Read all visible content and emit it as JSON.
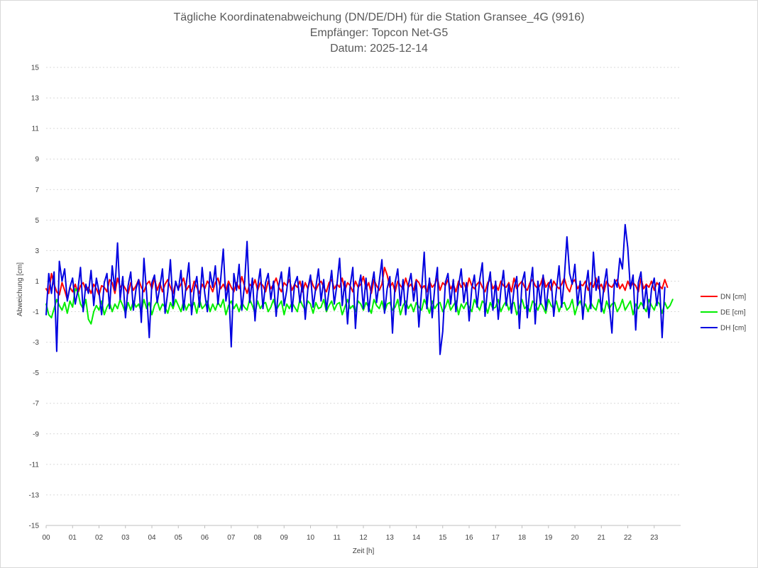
{
  "chart_data": {
    "type": "line",
    "title": [
      "Tägliche Koordinatenabweichung (DN/DE/DH) für die Station Gransee_4G (9916)",
      "Empfänger: Topcon Net-G5",
      "Datum: 2025-12-14"
    ],
    "xlabel": "Zeit [h]",
    "ylabel": "Abweichung [cm]",
    "xlim": [
      0,
      24
    ],
    "ylim": [
      -15,
      15
    ],
    "grid": true,
    "legend_position": "right",
    "x_ticks": [
      "00",
      "01",
      "02",
      "03",
      "04",
      "05",
      "06",
      "07",
      "08",
      "09",
      "10",
      "11",
      "12",
      "13",
      "14",
      "15",
      "16",
      "17",
      "18",
      "19",
      "20",
      "21",
      "22",
      "23"
    ],
    "y_ticks": [
      15,
      13,
      11,
      9,
      7,
      5,
      3,
      1,
      -1,
      -3,
      -5,
      -7,
      -9,
      -11,
      -13,
      -15
    ],
    "x_step_hours": 0.1,
    "series": [
      {
        "name": "DN [cm]",
        "color": "#ff0000",
        "values": [
          0.5,
          0.2,
          1.5,
          0.8,
          0.3,
          0.1,
          0.9,
          0.4,
          -0.2,
          0.6,
          0.3,
          0.8,
          0.2,
          0.7,
          0.9,
          0.4,
          0.6,
          0.2,
          0.8,
          0.5,
          0.1,
          0.7,
          0.6,
          0.3,
          1.1,
          0.9,
          0.2,
          1.2,
          0.6,
          0.8,
          0.5,
          0.2,
          0.9,
          0.4,
          0.7,
          1.1,
          0.6,
          0.3,
          0.8,
          1.0,
          0.5,
          1.2,
          0.4,
          0.9,
          0.3,
          0.8,
          1.1,
          0.6,
          0.2,
          0.9,
          0.5,
          0.8,
          1.2,
          0.4,
          0.7,
          0.3,
          1.0,
          0.6,
          0.2,
          0.8,
          0.5,
          1.0,
          0.7,
          0.3,
          0.9,
          1.2,
          0.5,
          0.8,
          0.4,
          1.0,
          0.6,
          0.3,
          0.9,
          0.5,
          1.3,
          0.7,
          0.2,
          0.8,
          0.6,
          1.1,
          0.4,
          0.9,
          0.7,
          0.3,
          1.0,
          0.5,
          0.8,
          1.2,
          0.6,
          0.3,
          0.9,
          0.7,
          1.1,
          0.4,
          0.8,
          0.6,
          1.0,
          0.3,
          0.9,
          0.5,
          1.2,
          0.7,
          0.4,
          0.8,
          1.0,
          0.6,
          0.3,
          0.9,
          1.1,
          0.5,
          0.8,
          0.6,
          1.2,
          0.4,
          0.9,
          0.7,
          0.3,
          1.0,
          0.6,
          0.8,
          1.3,
          0.5,
          0.9,
          0.2,
          1.1,
          0.7,
          0.4,
          0.8,
          1.9,
          1.4,
          0.6,
          0.9,
          0.3,
          1.0,
          0.7,
          0.5,
          1.2,
          0.6,
          0.8,
          0.4,
          1.1,
          0.9,
          0.5,
          0.7,
          0.3,
          1.0,
          0.6,
          0.8,
          1.2,
          0.4,
          0.9,
          0.7,
          1.1,
          0.5,
          0.8,
          0.3,
          1.0,
          0.6,
          0.9,
          0.4,
          1.2,
          0.7,
          0.5,
          0.8,
          1.0,
          0.6,
          0.3,
          0.9,
          1.1,
          0.5,
          0.8,
          0.4,
          1.0,
          0.7,
          0.6,
          0.9,
          0.3,
          1.2,
          0.5,
          0.8,
          1.0,
          0.6,
          0.4,
          0.9,
          1.1,
          0.7,
          0.5,
          0.8,
          1.3,
          0.6,
          0.9,
          0.4,
          1.0,
          0.7,
          0.5,
          0.8,
          1.2,
          0.6,
          0.3,
          0.9,
          1.1,
          0.5,
          0.8,
          0.7,
          1.0,
          0.4,
          0.9,
          0.6,
          1.2,
          0.5,
          0.8,
          0.3,
          1.0,
          0.7,
          0.6,
          0.9,
          1.1,
          0.5,
          0.8,
          0.4,
          1.0,
          0.6,
          0.9,
          0.7,
          0.3,
          1.2,
          0.5,
          0.8,
          0.6,
          1.0,
          0.4,
          0.9,
          0.7,
          0.5,
          1.1,
          0.6
        ],
        "visible_extent_note": "curve mostly between -0.5 and 2"
      },
      {
        "name": "DE [cm]",
        "color": "#00ee00",
        "values": [
          -0.5,
          -1.2,
          -1.4,
          -0.8,
          -0.2,
          -0.6,
          -0.9,
          -0.4,
          -1.1,
          -0.3,
          -0.7,
          0.5,
          0.3,
          -0.5,
          -0.8,
          -0.2,
          -1.5,
          -1.8,
          -1.0,
          -0.6,
          -0.9,
          -0.3,
          -1.2,
          -0.7,
          -0.4,
          -1.0,
          -0.5,
          -0.8,
          -0.2,
          -0.6,
          -1.1,
          -0.4,
          -0.9,
          -0.3,
          -0.7,
          -0.5,
          -1.0,
          -0.2,
          -0.8,
          -0.4,
          -1.2,
          -0.6,
          -0.3,
          -0.9,
          -0.5,
          -0.7,
          -1.1,
          -0.4,
          -0.8,
          -0.2,
          -0.6,
          -1.0,
          -0.3,
          -0.9,
          -0.5,
          -0.7,
          -0.4,
          -1.1,
          -0.2,
          -0.8,
          -0.6,
          -0.3,
          -1.0,
          -0.5,
          -0.9,
          -0.4,
          -0.7,
          -0.2,
          -1.2,
          -0.6,
          -0.3,
          -0.8,
          -0.5,
          -1.0,
          -0.4,
          -0.7,
          -0.9,
          -0.2,
          -0.6,
          -1.1,
          -0.3,
          -0.8,
          -0.5,
          -0.4,
          -1.0,
          -0.7,
          -0.2,
          -0.9,
          -0.6,
          -0.3,
          -1.2,
          -0.5,
          -0.8,
          -0.4,
          -0.7,
          -1.0,
          -0.2,
          -0.6,
          -0.9,
          -0.3,
          -0.5,
          -1.1,
          -0.4,
          -0.8,
          -0.7,
          -0.2,
          -1.0,
          -0.6,
          -0.3,
          -0.9,
          -0.5,
          -0.4,
          -1.2,
          -0.7,
          -0.2,
          -0.8,
          -0.6,
          -1.0,
          -0.3,
          -0.5,
          -0.9,
          -0.4,
          -0.7,
          -1.1,
          -0.2,
          -0.6,
          -0.8,
          -0.3,
          -1.0,
          -0.5,
          -0.4,
          -0.9,
          -0.7,
          -0.2,
          -1.2,
          -0.6,
          -0.3,
          -0.8,
          -0.5,
          -1.0,
          -0.4,
          -0.7,
          -0.9,
          -0.2,
          -0.6,
          -1.1,
          -0.3,
          -0.8,
          -0.5,
          -0.4,
          -1.0,
          -0.7,
          -0.2,
          -0.9,
          -0.6,
          -0.3,
          -1.2,
          -0.5,
          -0.8,
          -0.4,
          -0.7,
          -1.0,
          -0.2,
          -0.6,
          -0.9,
          -0.3,
          -0.5,
          -1.1,
          -0.4,
          -0.8,
          -0.7,
          -0.2,
          -1.0,
          -0.6,
          -0.3,
          -0.9,
          -0.5,
          -0.4,
          -1.2,
          -0.7,
          -0.2,
          -0.8,
          -0.6,
          -1.0,
          -0.3,
          -0.5,
          -0.9,
          -0.4,
          -0.7,
          -1.1,
          -0.2,
          -0.6,
          -0.8,
          -0.3,
          -1.0,
          -0.5,
          -0.4,
          -0.9,
          -0.7,
          -0.2,
          -1.2,
          -0.6,
          -0.3,
          -0.8,
          -0.5,
          -1.0,
          -0.4,
          -0.7,
          -0.9,
          -0.2,
          -0.6,
          -1.1,
          -0.3,
          -0.8,
          -0.5,
          -0.4,
          -1.0,
          -0.7,
          -0.2,
          -0.9,
          -0.6,
          -0.3,
          -1.2,
          -0.5,
          -0.8,
          -0.4,
          -0.7,
          -1.0,
          -0.2,
          -0.6,
          -0.9,
          -0.3,
          -0.5,
          -1.1,
          -0.4,
          -0.8,
          -0.6,
          -0.2
        ]
      },
      {
        "name": "DH [cm]",
        "color": "#0000e0",
        "values": [
          -1.2,
          1.5,
          0.2,
          1.6,
          -3.6,
          2.3,
          1.0,
          1.8,
          -0.3,
          0.6,
          1.2,
          -0.5,
          0.4,
          1.9,
          -1.0,
          0.8,
          0.2,
          1.7,
          -0.6,
          1.2,
          0.3,
          -1.2,
          0.9,
          1.5,
          -0.8,
          2.0,
          0.4,
          3.5,
          -0.2,
          1.3,
          -1.4,
          0.7,
          1.6,
          -0.9,
          0.5,
          1.1,
          -1.7,
          2.5,
          0.2,
          -2.7,
          0.9,
          1.4,
          -0.4,
          0.6,
          1.8,
          -1.1,
          0.3,
          2.4,
          -0.6,
          1.0,
          0.4,
          1.7,
          -0.9,
          0.8,
          2.2,
          -1.2,
          0.5,
          1.3,
          -0.7,
          1.9,
          0.2,
          -1.0,
          1.6,
          0.6,
          2.0,
          -0.5,
          1.1,
          3.1,
          -0.3,
          0.8,
          -3.3,
          1.5,
          0.4,
          2.1,
          -0.9,
          0.7,
          3.6,
          -0.4,
          1.2,
          -1.6,
          0.6,
          1.8,
          -0.8,
          0.9,
          1.5,
          -0.2,
          1.0,
          -1.3,
          0.7,
          1.6,
          -0.6,
          0.4,
          1.9,
          -1.0,
          0.8,
          1.3,
          -0.4,
          1.0,
          -1.5,
          0.5,
          1.4,
          -0.7,
          0.6,
          1.8,
          -0.3,
          1.1,
          -0.9,
          0.4,
          1.7,
          -0.5,
          0.8,
          2.5,
          -0.6,
          1.0,
          -1.8,
          0.7,
          1.9,
          -2.1,
          0.5,
          1.4,
          -0.8,
          1.2,
          -1.0,
          0.6,
          1.6,
          -0.4,
          1.0,
          2.4,
          -1.1,
          0.5,
          1.3,
          -2.4,
          0.9,
          1.8,
          -0.6,
          1.1,
          -1.2,
          0.7,
          1.5,
          -0.3,
          1.0,
          -2.0,
          0.4,
          2.9,
          -0.8,
          1.2,
          -1.4,
          0.6,
          1.9,
          -3.8,
          -2.3,
          0.9,
          1.5,
          -0.5,
          1.1,
          -1.0,
          0.7,
          1.8,
          -0.4,
          0.9,
          -1.6,
          0.5,
          1.4,
          -0.7,
          1.1,
          2.2,
          -1.3,
          0.6,
          1.6,
          -0.9,
          1.0,
          -1.5,
          0.4,
          1.7,
          -0.6,
          0.8,
          -1.1,
          0.5,
          1.3,
          -2.1,
          0.9,
          1.6,
          -1.4,
          0.6,
          1.9,
          -1.8,
          1.0,
          -0.5,
          1.4,
          -0.9,
          0.7,
          1.1,
          -1.3,
          0.4,
          2.0,
          -0.7,
          1.2,
          3.9,
          1.5,
          0.8,
          2.1,
          -0.6,
          1.0,
          -1.5,
          0.5,
          1.7,
          -0.8,
          2.9,
          0.4,
          1.3,
          -1.0,
          0.7,
          1.8,
          -0.5,
          -2.4,
          1.1,
          0.6,
          2.5,
          1.8,
          4.7,
          3.2,
          0.5,
          1.4,
          -2.2,
          0.9,
          1.6,
          -0.8,
          0.7,
          -1.4,
          0.5,
          1.2,
          -0.6,
          0.9,
          -2.7,
          0.6
        ]
      }
    ]
  },
  "legend": {
    "items": [
      {
        "label": "DN [cm]",
        "color": "#ff0000"
      },
      {
        "label": "DE [cm]",
        "color": "#00ee00"
      },
      {
        "label": "DH [cm]",
        "color": "#0000e0"
      }
    ]
  }
}
